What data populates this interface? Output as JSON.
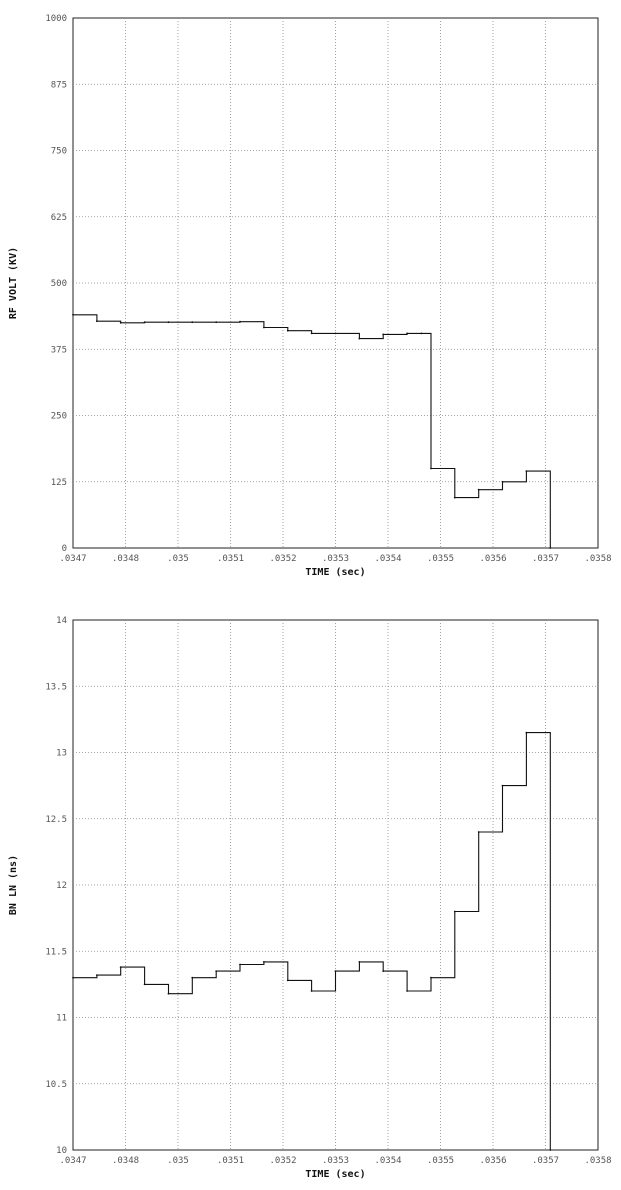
{
  "colors": {
    "line": "#111111",
    "grid": "#8a8a8a",
    "frame": "#222222",
    "text": "#555555"
  },
  "chart_data": [
    {
      "type": "line",
      "title": "",
      "xlabel": "TIME (sec)",
      "ylabel": "RF VOLT (KV)",
      "xlim": [
        0.0347,
        0.0358
      ],
      "ylim": [
        0,
        1000
      ],
      "grid": true,
      "x_tick_labels": [
        ".0347",
        ".0348",
        ".035",
        ".0351",
        ".0352",
        ".0353",
        ".0354",
        ".0355",
        ".0356",
        ".0357",
        ".0358"
      ],
      "y_tick_labels": [
        "0",
        "125",
        "250",
        "375",
        "500",
        "625",
        "750",
        "875",
        "1000"
      ],
      "series": [
        {
          "x": [
            0.0347,
            0.03475,
            0.0348,
            0.03485,
            0.0349,
            0.03495,
            0.035,
            0.03505,
            0.0351,
            0.03515,
            0.0352,
            0.03525,
            0.0353,
            0.03535,
            0.0354,
            0.03543,
            0.03545,
            0.0355,
            0.03555,
            0.0356,
            0.03565,
            0.0357
          ],
          "y": [
            440,
            428,
            425,
            426,
            426,
            426,
            426,
            427,
            416,
            410,
            405,
            405,
            395,
            403,
            405,
            405,
            150,
            95,
            110,
            125,
            145,
            0
          ]
        }
      ]
    },
    {
      "type": "line",
      "title": "",
      "xlabel": "TIME (sec)",
      "ylabel": "BN LN (ns)",
      "xlim": [
        0.0347,
        0.0358
      ],
      "ylim": [
        10,
        14
      ],
      "grid": true,
      "x_tick_labels": [
        ".0347",
        ".0348",
        ".035",
        ".0351",
        ".0352",
        ".0353",
        ".0354",
        ".0355",
        ".0356",
        ".0357",
        ".0358"
      ],
      "y_tick_labels": [
        "10",
        "10.5",
        "11",
        "11.5",
        "12",
        "12.5",
        "13",
        "13.5",
        "14"
      ],
      "series": [
        {
          "x": [
            0.0347,
            0.03475,
            0.0348,
            0.03485,
            0.0349,
            0.03495,
            0.035,
            0.03505,
            0.0351,
            0.03515,
            0.0352,
            0.03525,
            0.0353,
            0.03535,
            0.0354,
            0.03545,
            0.0355,
            0.03555,
            0.0356,
            0.03565,
            0.0357
          ],
          "y": [
            11.3,
            11.32,
            11.38,
            11.25,
            11.18,
            11.3,
            11.35,
            11.4,
            11.42,
            11.28,
            11.2,
            11.35,
            11.42,
            11.35,
            11.2,
            11.3,
            11.8,
            12.4,
            12.75,
            13.15,
            10.0
          ]
        }
      ]
    }
  ]
}
